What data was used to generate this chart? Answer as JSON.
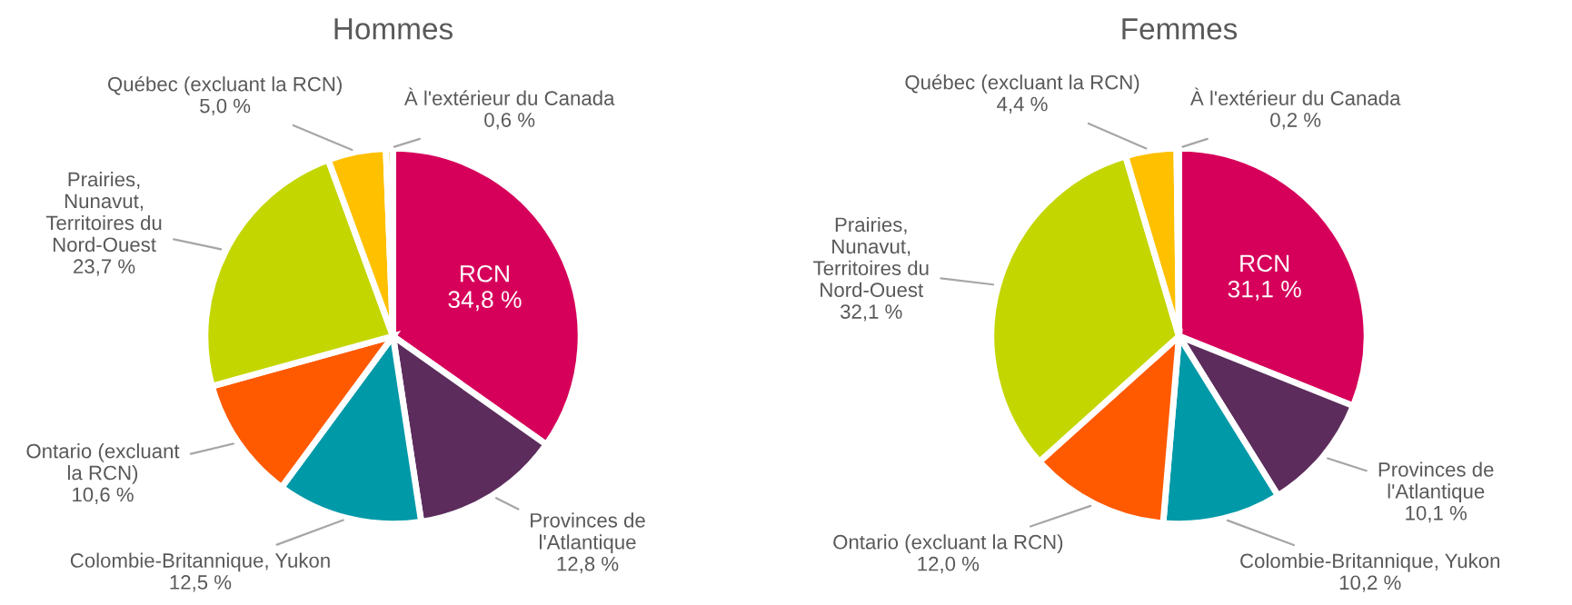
{
  "chart_data": [
    {
      "type": "pie",
      "title": "Hommes",
      "categories": [
        "RCN",
        "Provinces de\nl'Atlantique",
        "Colombie-Britannique, Yukon",
        "Ontario (excluant\nla RCN)",
        "Prairies,\nNunavut,\nTerritoires du\nNord-Ouest",
        "Québec (excluant la RCN)",
        "À l'extérieur du Canada"
      ],
      "values": [
        34.8,
        12.8,
        12.5,
        10.6,
        23.7,
        5.0,
        0.6
      ],
      "value_labels": [
        "34,8 %",
        "12,8 %",
        "12,5 %",
        "10,6 %",
        "23,7 %",
        "5,0 %",
        "0,6 %"
      ],
      "colors": [
        "#d6005a",
        "#5c2d5c",
        "#0099a8",
        "#ff5a00",
        "#c4d600",
        "#ffc000",
        "#f5c96a"
      ]
    },
    {
      "type": "pie",
      "title": "Femmes",
      "categories": [
        "RCN",
        "Provinces de\nl'Atlantique",
        "Colombie-Britannique, Yukon",
        "Ontario (excluant la RCN)",
        "Prairies,\nNunavut,\nTerritoires du\nNord-Ouest",
        "Québec (excluant la RCN)",
        "À l'extérieur du Canada"
      ],
      "values": [
        31.1,
        10.1,
        10.2,
        12.0,
        32.1,
        4.4,
        0.2
      ],
      "value_labels": [
        "31,1 %",
        "10,1 %",
        "10,2 %",
        "12,0 %",
        "32,1 %",
        "4,4 %",
        "0,2 %"
      ],
      "colors": [
        "#d6005a",
        "#5c2d5c",
        "#0099a8",
        "#ff5a00",
        "#c4d600",
        "#ffc000",
        "#f5c96a"
      ]
    }
  ]
}
